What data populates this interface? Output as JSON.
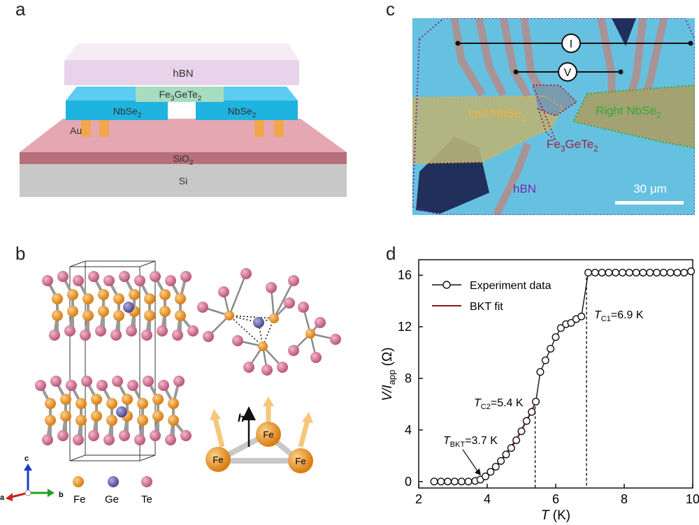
{
  "panel_labels": {
    "a": "a",
    "b": "b",
    "c": "c",
    "d": "d"
  },
  "panel_a": {
    "hbn": "hBN",
    "fgt_main": "Fe",
    "fgt_sub1": "3",
    "fgt_mid": "GeTe",
    "fgt_sub2": "2",
    "nbse_main": "NbSe",
    "nbse_sub": "2",
    "au": "Au",
    "sio_main": "SiO",
    "sio_sub": "2",
    "si": "Si",
    "colors": {
      "hbn": "#eedcf0",
      "nbse2": "#1fb3e0",
      "fgt": "#a6dcc0",
      "au": "#f3a64a",
      "sio2": "#d78a95",
      "si": "#c8c8c8"
    }
  },
  "panel_b": {
    "axis_c": "c",
    "axis_a": "a",
    "axis_b": "b",
    "legend": [
      {
        "label": "Fe",
        "color": "#e8901e"
      },
      {
        "label": "Ge",
        "color": "#6a67b0"
      },
      {
        "label": "Te",
        "color": "#d87093"
      }
    ],
    "spin_labels": [
      "Fe",
      "Fe",
      "Fe"
    ],
    "h_label": "h"
  },
  "panel_c": {
    "meter_current": "I",
    "meter_voltage": "V",
    "left_main": "Left NbSe",
    "left_sub": "2",
    "right_main": "Right NbSe",
    "right_sub": "2",
    "fgt_main": "Fe",
    "fgt_sub1": "3",
    "fgt_mid": "GeTe",
    "fgt_sub2": "2",
    "hbn": "hBN",
    "scale": "30 μm",
    "colors": {
      "left": "#f2b23a",
      "right": "#35a83a",
      "fgt": "#a02040",
      "hbn": "#7a2aa8"
    }
  },
  "chart_data": {
    "type": "line",
    "x_label_italic": "T",
    "x_label_unit": " (K)",
    "y_label_main": "V/I",
    "y_label_sub": "app",
    "y_label_unit": " (Ω)",
    "xlim": [
      2,
      10
    ],
    "ylim": [
      -0.5,
      17.2
    ],
    "xticks": [
      "2",
      "4",
      "6",
      "8",
      "10"
    ],
    "yticks": [
      "0",
      "4",
      "8",
      "12",
      "16"
    ],
    "legend": [
      "Experiment data",
      "BKT fit"
    ],
    "series": [
      {
        "name": "Experiment data",
        "x": [
          2.45,
          2.65,
          2.85,
          3.05,
          3.25,
          3.45,
          3.65,
          3.8,
          3.95,
          4.1,
          4.25,
          4.4,
          4.55,
          4.7,
          4.85,
          5.0,
          5.15,
          5.3,
          5.42,
          5.55,
          5.7,
          5.85,
          6.0,
          6.15,
          6.3,
          6.45,
          6.6,
          6.75,
          6.95,
          7.15,
          7.35,
          7.55,
          7.75,
          7.95,
          8.15,
          8.35,
          8.55,
          8.75,
          8.95,
          9.15,
          9.35,
          9.55,
          9.75,
          9.95
        ],
        "y": [
          0,
          0,
          0,
          0,
          0,
          0,
          0.05,
          0.15,
          0.4,
          0.75,
          1.15,
          1.6,
          2.1,
          2.6,
          3.2,
          3.9,
          4.7,
          5.4,
          6.2,
          8.5,
          9.4,
          10.3,
          11.2,
          11.9,
          12.2,
          12.3,
          12.6,
          12.8,
          16.2,
          16.2,
          16.2,
          16.2,
          16.2,
          16.2,
          16.2,
          16.2,
          16.2,
          16.2,
          16.2,
          16.2,
          16.2,
          16.2,
          16.2,
          16.3
        ]
      },
      {
        "name": "BKT fit",
        "x": [
          3.7,
          3.9,
          4.1,
          4.3,
          4.5,
          4.7,
          4.9,
          5.1,
          5.3,
          5.42
        ],
        "y": [
          0,
          0.3,
          0.8,
          1.35,
          2.0,
          2.7,
          3.5,
          4.5,
          5.5,
          6.2
        ]
      }
    ],
    "annotations": [
      {
        "sym": "T",
        "sub": "C1",
        "text": "=6.9 K",
        "x": 6.9
      },
      {
        "sym": "T",
        "sub": "C2",
        "text": "=5.4 K",
        "x": 5.4
      },
      {
        "sym": "T",
        "sub": "BKT",
        "text": "=3.7 K",
        "x": 3.7
      }
    ]
  }
}
